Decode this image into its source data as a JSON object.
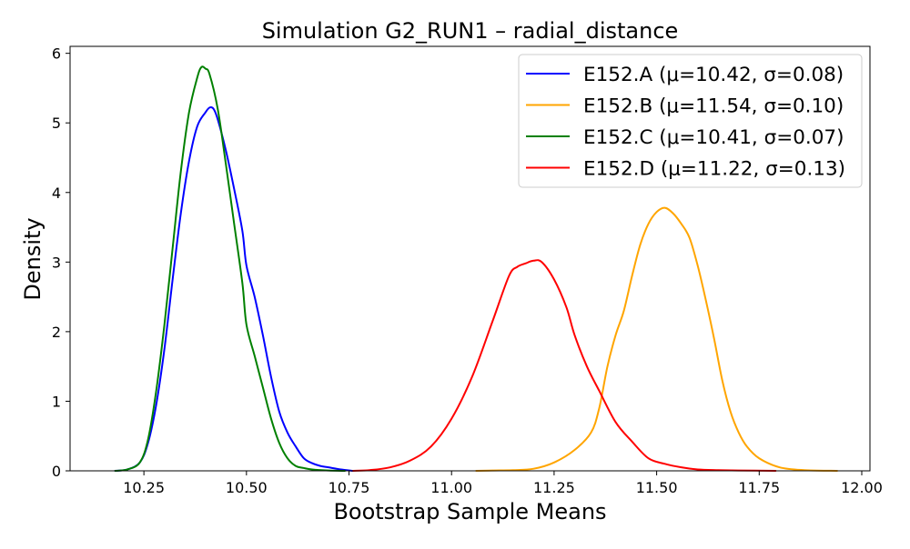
{
  "chart_data": {
    "type": "line",
    "title": "Simulation G2_RUN1 – radial_distance",
    "xlabel": "Bootstrap Sample Means",
    "ylabel": "Density",
    "xlim": [
      10.07,
      12.02
    ],
    "ylim": [
      0,
      6.1
    ],
    "x_ticks": [
      "10.25",
      "10.50",
      "10.75",
      "11.00",
      "11.25",
      "11.50",
      "11.75",
      "12.00"
    ],
    "x_tick_values": [
      10.25,
      10.5,
      10.75,
      11.0,
      11.25,
      11.5,
      11.75,
      12.0
    ],
    "y_ticks": [
      "0",
      "1",
      "2",
      "3",
      "4",
      "5",
      "6"
    ],
    "y_tick_values": [
      0,
      1,
      2,
      3,
      4,
      5,
      6
    ],
    "grid": false,
    "legend_position": "top-right",
    "series": [
      {
        "name": "E152.A (μ=10.42, σ=0.08)",
        "color": "#0000ff",
        "points": [
          [
            10.18,
            0.0
          ],
          [
            10.21,
            0.02
          ],
          [
            10.24,
            0.12
          ],
          [
            10.26,
            0.4
          ],
          [
            10.28,
            0.95
          ],
          [
            10.3,
            1.75
          ],
          [
            10.32,
            2.75
          ],
          [
            10.34,
            3.7
          ],
          [
            10.36,
            4.45
          ],
          [
            10.38,
            4.95
          ],
          [
            10.4,
            5.15
          ],
          [
            10.41,
            5.22
          ],
          [
            10.42,
            5.2
          ],
          [
            10.43,
            5.05
          ],
          [
            10.45,
            4.6
          ],
          [
            10.47,
            4.05
          ],
          [
            10.49,
            3.45
          ],
          [
            10.5,
            2.95
          ],
          [
            10.52,
            2.5
          ],
          [
            10.54,
            1.95
          ],
          [
            10.56,
            1.35
          ],
          [
            10.58,
            0.85
          ],
          [
            10.6,
            0.55
          ],
          [
            10.62,
            0.35
          ],
          [
            10.64,
            0.18
          ],
          [
            10.66,
            0.11
          ],
          [
            10.68,
            0.07
          ],
          [
            10.7,
            0.05
          ],
          [
            10.73,
            0.02
          ],
          [
            10.76,
            0.0
          ]
        ]
      },
      {
        "name": "E152.B (μ=11.54, σ=0.10)",
        "color": "#ffa500",
        "points": [
          [
            11.06,
            0.0
          ],
          [
            11.1,
            0.005
          ],
          [
            11.15,
            0.01
          ],
          [
            11.2,
            0.03
          ],
          [
            11.25,
            0.12
          ],
          [
            11.3,
            0.3
          ],
          [
            11.34,
            0.55
          ],
          [
            11.36,
            0.9
          ],
          [
            11.38,
            1.5
          ],
          [
            11.4,
            1.95
          ],
          [
            11.42,
            2.3
          ],
          [
            11.44,
            2.8
          ],
          [
            11.46,
            3.25
          ],
          [
            11.48,
            3.55
          ],
          [
            11.5,
            3.72
          ],
          [
            11.52,
            3.78
          ],
          [
            11.54,
            3.7
          ],
          [
            11.56,
            3.55
          ],
          [
            11.58,
            3.35
          ],
          [
            11.6,
            2.95
          ],
          [
            11.62,
            2.45
          ],
          [
            11.64,
            1.9
          ],
          [
            11.66,
            1.3
          ],
          [
            11.68,
            0.85
          ],
          [
            11.7,
            0.55
          ],
          [
            11.72,
            0.35
          ],
          [
            11.75,
            0.18
          ],
          [
            11.8,
            0.05
          ],
          [
            11.86,
            0.01
          ],
          [
            11.94,
            0.0
          ]
        ]
      },
      {
        "name": "E152.C (μ=10.41, σ=0.07)",
        "color": "#008000",
        "points": [
          [
            10.18,
            0.0
          ],
          [
            10.21,
            0.02
          ],
          [
            10.24,
            0.12
          ],
          [
            10.26,
            0.45
          ],
          [
            10.28,
            1.15
          ],
          [
            10.3,
            2.1
          ],
          [
            10.32,
            3.2
          ],
          [
            10.34,
            4.3
          ],
          [
            10.36,
            5.15
          ],
          [
            10.38,
            5.65
          ],
          [
            10.39,
            5.8
          ],
          [
            10.4,
            5.78
          ],
          [
            10.41,
            5.7
          ],
          [
            10.43,
            5.2
          ],
          [
            10.45,
            4.4
          ],
          [
            10.47,
            3.55
          ],
          [
            10.49,
            2.7
          ],
          [
            10.5,
            2.1
          ],
          [
            10.52,
            1.65
          ],
          [
            10.54,
            1.2
          ],
          [
            10.56,
            0.75
          ],
          [
            10.58,
            0.4
          ],
          [
            10.6,
            0.18
          ],
          [
            10.62,
            0.07
          ],
          [
            10.64,
            0.04
          ],
          [
            10.66,
            0.02
          ],
          [
            10.7,
            0.005
          ],
          [
            10.74,
            0.0
          ]
        ]
      },
      {
        "name": "E152.D (μ=11.22, σ=0.13)",
        "color": "#ff0000",
        "points": [
          [
            10.76,
            0.0
          ],
          [
            10.8,
            0.01
          ],
          [
            10.85,
            0.05
          ],
          [
            10.9,
            0.15
          ],
          [
            10.95,
            0.35
          ],
          [
            11.0,
            0.75
          ],
          [
            11.05,
            1.35
          ],
          [
            11.1,
            2.15
          ],
          [
            11.14,
            2.8
          ],
          [
            11.16,
            2.93
          ],
          [
            11.18,
            2.98
          ],
          [
            11.2,
            3.02
          ],
          [
            11.22,
            3.0
          ],
          [
            11.25,
            2.75
          ],
          [
            11.28,
            2.35
          ],
          [
            11.3,
            1.95
          ],
          [
            11.33,
            1.5
          ],
          [
            11.36,
            1.15
          ],
          [
            11.4,
            0.7
          ],
          [
            11.44,
            0.42
          ],
          [
            11.48,
            0.18
          ],
          [
            11.52,
            0.1
          ],
          [
            11.56,
            0.05
          ],
          [
            11.6,
            0.02
          ],
          [
            11.65,
            0.01
          ],
          [
            11.7,
            0.005
          ],
          [
            11.79,
            0.0
          ]
        ]
      }
    ]
  }
}
